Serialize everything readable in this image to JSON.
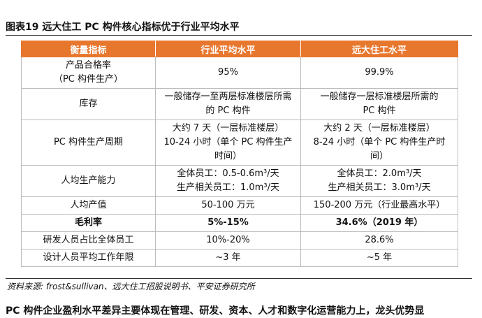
{
  "header": {
    "title": "图表19  远大住工 PC 构件核心指标优于行业平均水平"
  },
  "table": {
    "columns": [
      "衡量指标",
      "行业平均水平",
      "远大住工水平"
    ],
    "rows": [
      [
        [
          "产品合格率",
          "（PC 构件生产）"
        ],
        [
          "95%"
        ],
        [
          "99.9%"
        ]
      ],
      [
        [
          "库存"
        ],
        [
          "一般储存一至两层标准楼层所需",
          "的 PC 构件"
        ],
        [
          "一般储存一层标准楼层所需的",
          "PC 构件"
        ]
      ],
      [
        [
          "PC 构件生产周期"
        ],
        [
          "大约 7 天（一层标准楼层）",
          "10-24 小时（单个 PC 构件生产",
          "时间）"
        ],
        [
          "大约 2 天（一层标准楼层）",
          "8-24 小时（单个 PC 构件生产时",
          "间）"
        ]
      ],
      [
        [
          "人均生产能力"
        ],
        [
          "全体员工：0.5-0.6m³/天",
          "生产相关员工：1.0m³/天"
        ],
        [
          "全体员工：2.0m³/天",
          "生产相关员工：3.0m³/天"
        ]
      ],
      [
        [
          "人均产值"
        ],
        [
          "50-100 万元"
        ],
        [
          "150-200 万元（行业最高水平）"
        ]
      ],
      [
        [
          "毛利率"
        ],
        [
          "5%-15%"
        ],
        [
          "34.6%（2019 年）"
        ]
      ],
      [
        [
          "研发人员占比全体员工"
        ],
        [
          "10%-20%"
        ],
        [
          "28.6%"
        ]
      ],
      [
        [
          "设计人员平均工作年限"
        ],
        [
          "~3 年"
        ],
        [
          "~5 年"
        ]
      ]
    ]
  },
  "source": "资料来源: frost&sullivan、远大住工招股说明书、平安证券研究所",
  "body_text": "PC 构件企业盈利水平差异主要体现在管理、研发、资本、人才和数字化运营能力上，龙头优势显"
}
